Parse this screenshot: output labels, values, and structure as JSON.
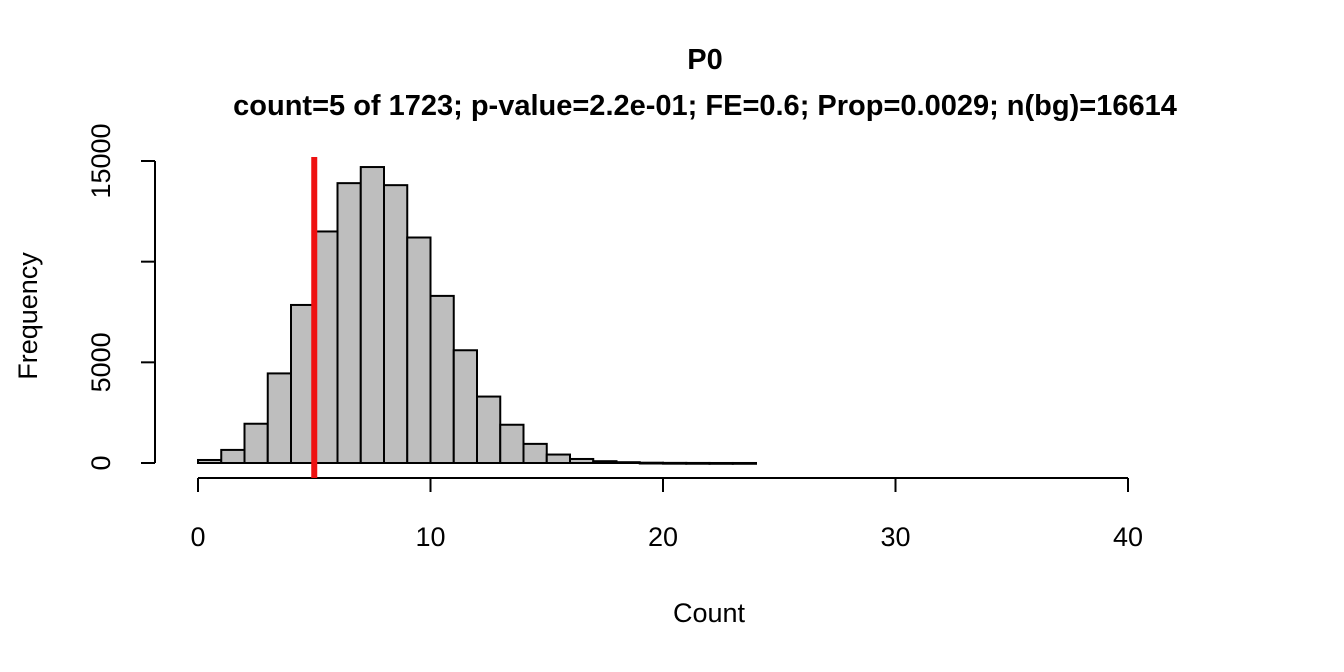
{
  "chart_data": {
    "type": "bar",
    "title": "P0",
    "subtitle": "count=5 of 1723; p-value=2.2e-01; FE=0.6; Prop=0.0029; n(bg)=16614",
    "xlabel": "Count",
    "ylabel": "Frequency",
    "xlim": [
      0,
      40
    ],
    "ylim": [
      0,
      15000
    ],
    "xticks": [
      "0",
      "10",
      "20",
      "30",
      "40"
    ],
    "yticks": [
      "0",
      "5000",
      "",
      "15000"
    ],
    "bin_width": 1,
    "bins": [
      {
        "x0": 0,
        "x1": 1,
        "value": 150
      },
      {
        "x0": 1,
        "x1": 2,
        "value": 650
      },
      {
        "x0": 2,
        "x1": 3,
        "value": 1950
      },
      {
        "x0": 3,
        "x1": 4,
        "value": 4450
      },
      {
        "x0": 4,
        "x1": 5,
        "value": 7850
      },
      {
        "x0": 5,
        "x1": 6,
        "value": 11500
      },
      {
        "x0": 6,
        "x1": 7,
        "value": 13900
      },
      {
        "x0": 7,
        "x1": 8,
        "value": 14700
      },
      {
        "x0": 8,
        "x1": 9,
        "value": 13800
      },
      {
        "x0": 9,
        "x1": 10,
        "value": 11200
      },
      {
        "x0": 10,
        "x1": 11,
        "value": 8300
      },
      {
        "x0": 11,
        "x1": 12,
        "value": 5600
      },
      {
        "x0": 12,
        "x1": 13,
        "value": 3300
      },
      {
        "x0": 13,
        "x1": 14,
        "value": 1900
      },
      {
        "x0": 14,
        "x1": 15,
        "value": 950
      },
      {
        "x0": 15,
        "x1": 16,
        "value": 420
      },
      {
        "x0": 16,
        "x1": 17,
        "value": 200
      },
      {
        "x0": 17,
        "x1": 18,
        "value": 90
      },
      {
        "x0": 18,
        "x1": 19,
        "value": 40
      },
      {
        "x0": 19,
        "x1": 20,
        "value": 15
      },
      {
        "x0": 20,
        "x1": 21,
        "value": 6
      },
      {
        "x0": 21,
        "x1": 22,
        "value": 3
      },
      {
        "x0": 22,
        "x1": 23,
        "value": 1
      },
      {
        "x0": 23,
        "x1": 24,
        "value": 1
      }
    ],
    "observed_line": {
      "x": 5,
      "color": "#ee1111"
    },
    "bar_fill": "#bebebe",
    "bar_stroke": "#000000"
  }
}
